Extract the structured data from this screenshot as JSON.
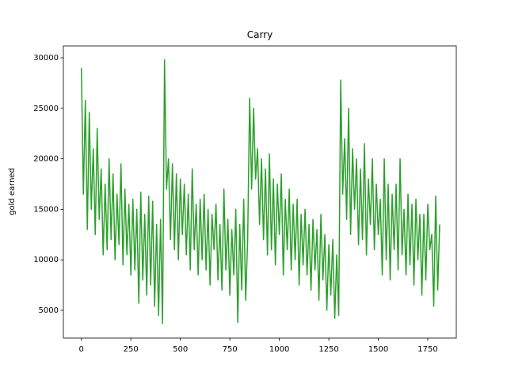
{
  "chart_data": {
    "type": "line",
    "title": "Carry",
    "y_label": "gold earned",
    "x": [
      0,
      10,
      20,
      30,
      40,
      50,
      60,
      70,
      80,
      90,
      100,
      110,
      120,
      130,
      140,
      150,
      160,
      170,
      180,
      190,
      200,
      210,
      220,
      230,
      240,
      250,
      260,
      270,
      280,
      290,
      300,
      310,
      320,
      330,
      340,
      350,
      360,
      370,
      380,
      390,
      400,
      410,
      420,
      430,
      440,
      450,
      460,
      470,
      480,
      490,
      500,
      510,
      520,
      530,
      540,
      550,
      560,
      570,
      580,
      590,
      600,
      610,
      620,
      630,
      640,
      650,
      660,
      670,
      680,
      690,
      700,
      710,
      720,
      730,
      740,
      750,
      760,
      770,
      780,
      790,
      800,
      810,
      820,
      830,
      840,
      850,
      860,
      870,
      880,
      890,
      900,
      910,
      920,
      930,
      940,
      950,
      960,
      970,
      980,
      990,
      1000,
      1010,
      1020,
      1030,
      1040,
      1050,
      1060,
      1070,
      1080,
      1090,
      1100,
      1110,
      1120,
      1130,
      1140,
      1150,
      1160,
      1170,
      1180,
      1190,
      1200,
      1210,
      1220,
      1230,
      1240,
      1250,
      1260,
      1270,
      1280,
      1290,
      1300,
      1310,
      1320,
      1330,
      1340,
      1350,
      1360,
      1370,
      1380,
      1390,
      1400,
      1410,
      1420,
      1430,
      1440,
      1450,
      1460,
      1470,
      1480,
      1490,
      1500,
      1510,
      1520,
      1530,
      1540,
      1550,
      1560,
      1570,
      1580,
      1590,
      1600,
      1610,
      1620,
      1630,
      1640,
      1650,
      1660,
      1670,
      1680,
      1690,
      1700,
      1710,
      1720,
      1730,
      1740,
      1750,
      1760,
      1770,
      1780,
      1790,
      1800,
      1810
    ],
    "series": [
      {
        "name": "Carry",
        "color": "#2ca02c",
        "values": [
          29000,
          16500,
          25800,
          13000,
          24600,
          15000,
          21000,
          12500,
          23000,
          14000,
          19000,
          10500,
          17500,
          11000,
          20000,
          12000,
          18500,
          10000,
          16500,
          11500,
          19500,
          9500,
          17000,
          10500,
          15500,
          8500,
          16000,
          9000,
          15000,
          5700,
          16700,
          8000,
          14500,
          6500,
          16300,
          7500,
          15800,
          5400,
          13500,
          4500,
          14000,
          3700,
          29800,
          17000,
          20000,
          12000,
          19500,
          11000,
          18500,
          10000,
          18000,
          12500,
          17500,
          10500,
          16500,
          9000,
          19000,
          11000,
          15500,
          8500,
          16000,
          10000,
          16500,
          9000,
          15000,
          7500,
          14500,
          11000,
          15500,
          8000,
          13500,
          7000,
          17000,
          9000,
          14000,
          6500,
          13000,
          8500,
          15000,
          3800,
          13500,
          7000,
          16000,
          6000,
          12000,
          26000,
          17000,
          25000,
          18000,
          21000,
          13500,
          20000,
          12000,
          19000,
          10500,
          20500,
          11000,
          18000,
          9500,
          17500,
          12500,
          18500,
          8500,
          16000,
          11000,
          17000,
          9000,
          15500,
          10000,
          16000,
          7500,
          14500,
          9500,
          15000,
          8500,
          13500,
          7000,
          14000,
          9000,
          13000,
          6000,
          14500,
          8000,
          12500,
          5000,
          11500,
          6500,
          12000,
          4200,
          10500,
          4500,
          27800,
          16500,
          22000,
          14000,
          25000,
          12500,
          21000,
          15000,
          20000,
          11500,
          19000,
          12000,
          21500,
          10500,
          18000,
          13500,
          20000,
          11000,
          17500,
          12500,
          16000,
          8500,
          20000,
          10000,
          17500,
          8000,
          16500,
          11000,
          17500,
          9000,
          20000,
          10500,
          15000,
          8500,
          16500,
          9500,
          15500,
          7500,
          16000,
          10000,
          14500,
          6500,
          14500,
          8000,
          15500,
          11000,
          12500,
          5400,
          16300,
          7000,
          13500
        ]
      }
    ],
    "xlim": [
      -91,
      1894
    ],
    "ylim": [
      2257,
      31175
    ],
    "xticks": [
      0,
      250,
      500,
      750,
      1000,
      1250,
      1500,
      1750
    ],
    "yticks": [
      5000,
      10000,
      15000,
      20000,
      25000,
      30000
    ]
  }
}
